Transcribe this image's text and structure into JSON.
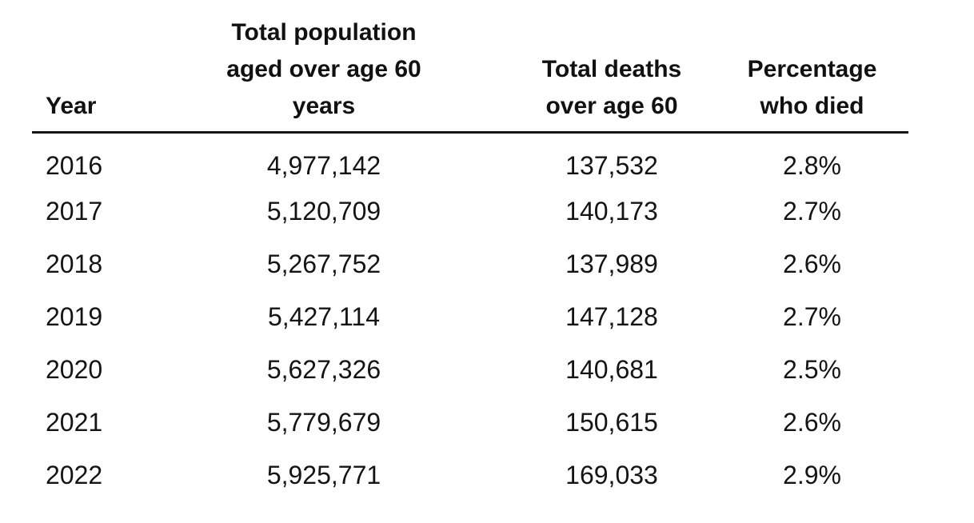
{
  "chart_data": {
    "type": "table",
    "columns": [
      "Year",
      "Total population aged over age 60 years",
      "Total deaths over age 60",
      "Percentage who died"
    ],
    "rows": [
      [
        "2016",
        "4,977,142",
        "137,532",
        "2.8%"
      ],
      [
        "2017",
        "5,120,709",
        "140,173",
        "2.7%"
      ],
      [
        "2018",
        "5,267,752",
        "137,989",
        "2.6%"
      ],
      [
        "2019",
        "5,427,114",
        "147,128",
        "2.7%"
      ],
      [
        "2020",
        "5,627,326",
        "140,681",
        "2.5%"
      ],
      [
        "2021",
        "5,779,679",
        "150,615",
        "2.6%"
      ],
      [
        "2022",
        "5,925,771",
        "169,033",
        "2.9%"
      ]
    ],
    "numeric": {
      "years": [
        2016,
        2017,
        2018,
        2019,
        2020,
        2021,
        2022
      ],
      "population_over_60": [
        4977142,
        5120709,
        5267752,
        5427114,
        5627326,
        5779679,
        5925771
      ],
      "deaths_over_60": [
        137532,
        140173,
        137989,
        147128,
        140681,
        150615,
        169033
      ],
      "percentage_who_died": [
        2.8,
        2.7,
        2.6,
        2.7,
        2.5,
        2.6,
        2.9
      ]
    },
    "layout": {
      "header_rule": "solid-under-header",
      "year_column_align": "left",
      "value_columns_align": "center",
      "grid": "off"
    }
  },
  "colors": {
    "background": "#ffffff",
    "text": "#141414",
    "header_text": "#111111",
    "rule": "#141414"
  }
}
